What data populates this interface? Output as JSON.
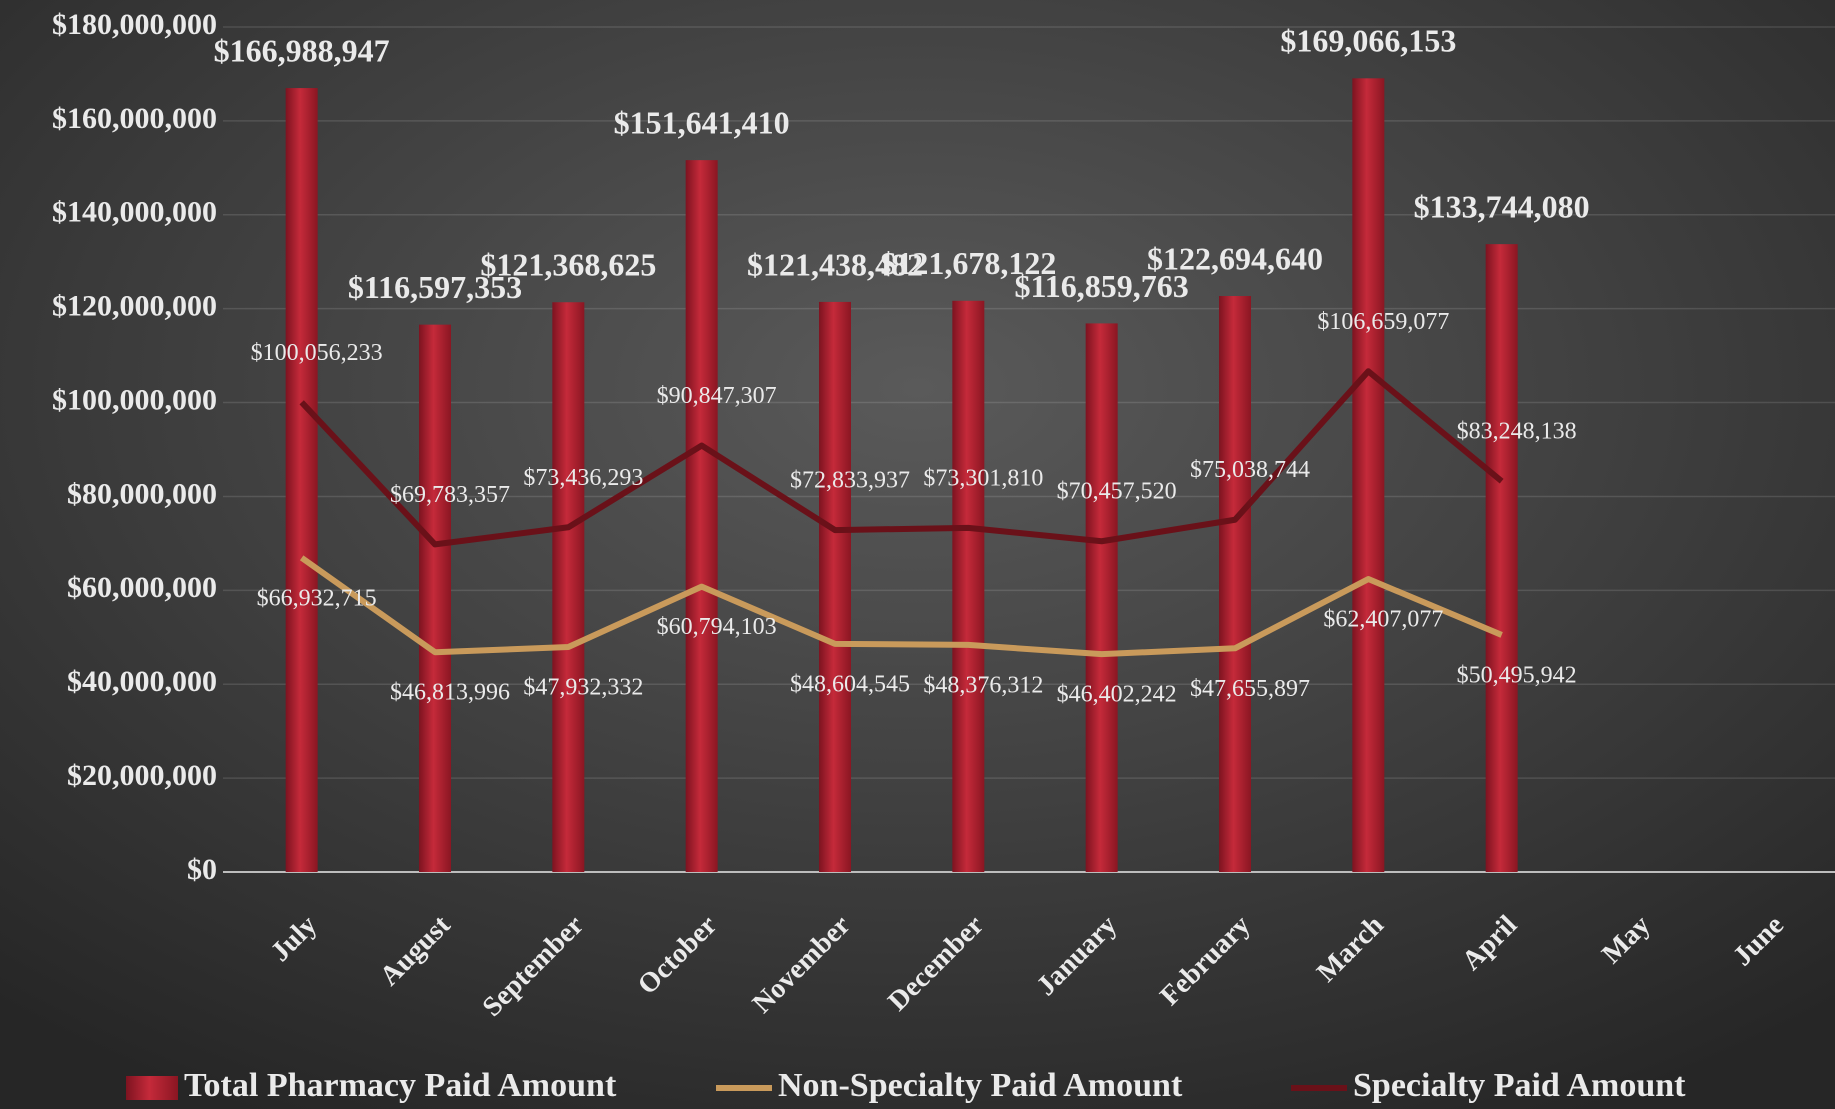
{
  "chart_data": {
    "type": "bar",
    "categories": [
      "July",
      "August",
      "September",
      "October",
      "November",
      "December",
      "January",
      "February",
      "March",
      "April",
      "May",
      "June"
    ],
    "series": [
      {
        "name": "Total Pharmacy Paid Amount",
        "type": "bar",
        "color": "#b3202f",
        "values": [
          166988947,
          116597353,
          121368625,
          151641410,
          121438482,
          121678122,
          116859763,
          122694640,
          169066153,
          133744080,
          null,
          null
        ],
        "value_labels": [
          "$166,988,947",
          "$116,597,353",
          "$121,368,625",
          "$151,641,410",
          "$121,438,482",
          "$121,678,122",
          "$116,859,763",
          "$122,694,640",
          "$169,066,153",
          "$133,744,080",
          null,
          null
        ]
      },
      {
        "name": "Non-Specialty Paid Amount",
        "type": "line",
        "color": "#c99a5b",
        "values": [
          66932715,
          46813996,
          47932332,
          60794103,
          48604545,
          48376312,
          46402242,
          47655897,
          62407077,
          50495942,
          null,
          null
        ],
        "value_labels": [
          "$66,932,715",
          "$46,813,996",
          "$47,932,332",
          "$60,794,103",
          "$48,604,545",
          "$48,376,312",
          "$46,402,242",
          "$47,655,897",
          "$62,407,077",
          "$50,495,942",
          null,
          null
        ]
      },
      {
        "name": "Specialty Paid Amount",
        "type": "line",
        "color": "#6a1119",
        "values": [
          100056233,
          69783357,
          73436293,
          90847307,
          72833937,
          73301810,
          70457520,
          75038744,
          106659077,
          83248138,
          null,
          null
        ],
        "value_labels": [
          "$100,056,233",
          "$69,783,357",
          "$73,436,293",
          "$90,847,307",
          "$72,833,937",
          "$73,301,810",
          "$70,457,520",
          "$75,038,744",
          "$106,659,077",
          "$83,248,138",
          null,
          null
        ]
      }
    ],
    "ylim": [
      0,
      180000000
    ],
    "yticks": [
      {
        "value": 0,
        "label": "$0"
      },
      {
        "value": 20000000,
        "label": "$20,000,000"
      },
      {
        "value": 40000000,
        "label": "$40,000,000"
      },
      {
        "value": 60000000,
        "label": "$60,000,000"
      },
      {
        "value": 80000000,
        "label": "$80,000,000"
      },
      {
        "value": 100000000,
        "label": "$100,000,000"
      },
      {
        "value": 120000000,
        "label": "$120,000,000"
      },
      {
        "value": 140000000,
        "label": "$140,000,000"
      },
      {
        "value": 160000000,
        "label": "$160,000,000"
      },
      {
        "value": 180000000,
        "label": "$180,000,000"
      }
    ],
    "grid": true,
    "legend": "bottom"
  }
}
